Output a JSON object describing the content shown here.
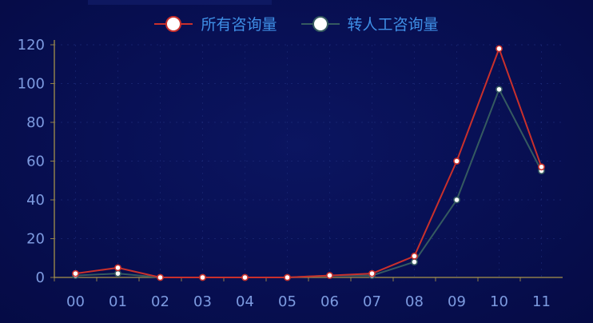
{
  "colors": {
    "background": "#060d4a",
    "tick_text": "#7d9be0",
    "axis_line": "#b09a4a",
    "series_all": "#c9302c",
    "series_human": "#355a60",
    "marker": "#ffffff"
  },
  "chart_data": {
    "type": "line",
    "title": "",
    "xlabel": "",
    "ylabel": "",
    "legend_position": "top-center",
    "grid": true,
    "categories": [
      "00",
      "01",
      "02",
      "03",
      "04",
      "05",
      "06",
      "07",
      "08",
      "09",
      "10",
      "11"
    ],
    "ylim": [
      0,
      120
    ],
    "yticks": [
      0,
      20,
      40,
      60,
      80,
      100,
      120
    ],
    "series": [
      {
        "name": "所有咨询量",
        "color": "#c9302c",
        "values": [
          2,
          5,
          0,
          0,
          0,
          0,
          1,
          2,
          11,
          60,
          118,
          57
        ]
      },
      {
        "name": "转人工咨询量",
        "color": "#355a60",
        "values": [
          1,
          2,
          0,
          0,
          0,
          0,
          1,
          1,
          8,
          40,
          97,
          55
        ]
      }
    ]
  }
}
